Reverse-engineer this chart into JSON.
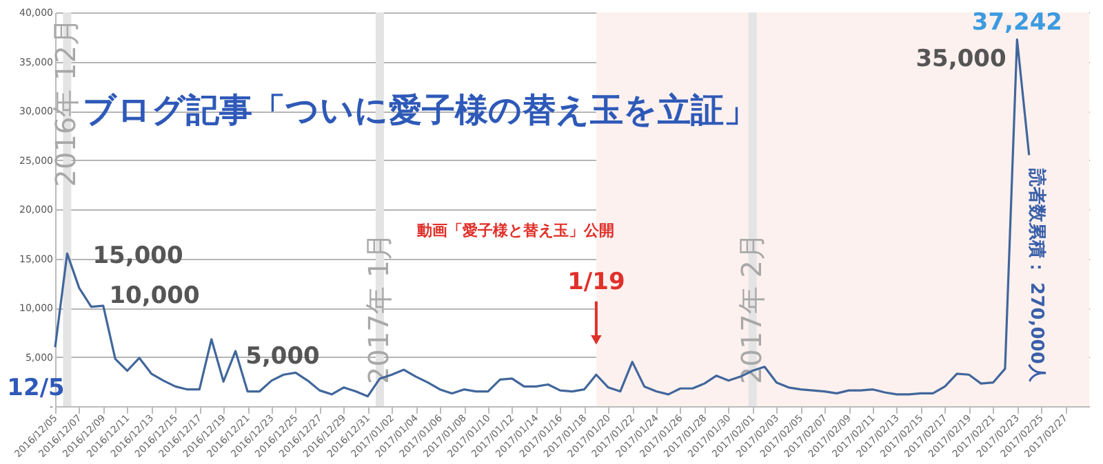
{
  "chart_data": {
    "type": "line",
    "title": "ブログ記事「ついに愛子様の替え玉を立証」",
    "x": [
      "2016-12-05",
      "2016-12-06",
      "2016-12-07",
      "2016-12-08",
      "2016-12-09",
      "2016-12-10",
      "2016-12-11",
      "2016-12-12",
      "2016-12-13",
      "2016-12-14",
      "2016-12-15",
      "2016-12-16",
      "2016-12-17",
      "2016-12-18",
      "2016-12-19",
      "2016-12-20",
      "2016-12-21",
      "2016-12-22",
      "2016-12-23",
      "2016-12-24",
      "2016-12-25",
      "2016-12-26",
      "2016-12-27",
      "2016-12-28",
      "2016-12-29",
      "2016-12-30",
      "2016-12-31",
      "2017-01-01",
      "2017-01-02",
      "2017-01-03",
      "2017-01-04",
      "2017-01-05",
      "2017-01-06",
      "2017-01-07",
      "2017-01-08",
      "2017-01-09",
      "2017-01-10",
      "2017-01-11",
      "2017-01-12",
      "2017-01-13",
      "2017-01-14",
      "2017-01-15",
      "2017-01-16",
      "2017-01-17",
      "2017-01-18",
      "2017-01-19",
      "2017-01-20",
      "2017-01-21",
      "2017-01-22",
      "2017-01-23",
      "2017-01-24",
      "2017-01-25",
      "2017-01-26",
      "2017-01-27",
      "2017-01-28",
      "2017-01-29",
      "2017-01-30",
      "2017-01-31",
      "2017-02-01",
      "2017-02-02",
      "2017-02-03",
      "2017-02-04",
      "2017-02-05",
      "2017-02-06",
      "2017-02-07",
      "2017-02-08",
      "2017-02-09",
      "2017-02-10",
      "2017-02-11",
      "2017-02-12",
      "2017-02-13",
      "2017-02-14",
      "2017-02-15",
      "2017-02-16",
      "2017-02-17",
      "2017-02-18",
      "2017-02-19",
      "2017-02-20",
      "2017-02-21",
      "2017-02-22",
      "2017-02-23",
      "2017-02-24"
    ],
    "value_labels": [
      null,
      null,
      null,
      null,
      null,
      null,
      null,
      null,
      null,
      null,
      null,
      null,
      null,
      null,
      null,
      null,
      null,
      null,
      null,
      null,
      null,
      null,
      null,
      null,
      null,
      null,
      null,
      null,
      null,
      null,
      null,
      null,
      null,
      null,
      null,
      null,
      null,
      null,
      null,
      null,
      null,
      null,
      null,
      null,
      null,
      null,
      null,
      null,
      null,
      null,
      null,
      null,
      null,
      null,
      null,
      null,
      null,
      null,
      null,
      null,
      null,
      null,
      null,
      null,
      null,
      null,
      null,
      null,
      null,
      null,
      null,
      null,
      null,
      null,
      null,
      null,
      null,
      null,
      null,
      null,
      "37,242",
      null
    ],
    "series": [
      {
        "color": "#41669b",
        "values": [
          6000,
          15500,
          12000,
          10100,
          10200,
          4800,
          3600,
          4900,
          3300,
          2600,
          2000,
          1700,
          1700,
          6800,
          2500,
          5600,
          1500,
          1500,
          2600,
          3200,
          3400,
          2600,
          1600,
          1200,
          1900,
          1500,
          1000,
          2800,
          3200,
          3700,
          3000,
          2400,
          1700,
          1300,
          1700,
          1500,
          1500,
          2700,
          2800,
          2000,
          2000,
          2200,
          1600,
          1500,
          1700,
          3200,
          1900,
          1500,
          4500,
          2000,
          1500,
          1200,
          1800,
          1800,
          2300,
          3100,
          2600,
          3000,
          3600,
          4000,
          2400,
          1900,
          1700,
          1600,
          1500,
          1300,
          1600,
          1600,
          1700,
          1400,
          1200,
          1200,
          1300,
          1300,
          2000,
          3300,
          3200,
          2300,
          2400,
          3800,
          37242,
          25500
        ]
      }
    ],
    "xlim": [
      "2016-12-05",
      "2017-03-01"
    ],
    "xticks": [
      {
        "value": "2016-12-05",
        "label": "2016/12/05"
      },
      {
        "value": "2016-12-07",
        "label": "2016/12/07"
      },
      {
        "value": "2016-12-09",
        "label": "2016/12/09"
      },
      {
        "value": "2016-12-11",
        "label": "2016/12/11"
      },
      {
        "value": "2016-12-13",
        "label": "2016/12/13"
      },
      {
        "value": "2016-12-15",
        "label": "2016/12/15"
      },
      {
        "value": "2016-12-17",
        "label": "2016/12/17"
      },
      {
        "value": "2016-12-19",
        "label": "2016/12/19"
      },
      {
        "value": "2016-12-21",
        "label": "2016/12/21"
      },
      {
        "value": "2016-12-23",
        "label": "2016/12/23"
      },
      {
        "value": "2016-12-25",
        "label": "2016/12/25"
      },
      {
        "value": "2016-12-27",
        "label": "2016/12/27"
      },
      {
        "value": "2016-12-29",
        "label": "2016/12/29"
      },
      {
        "value": "2016-12-31",
        "label": "2016/12/31"
      },
      {
        "value": "2017-01-02",
        "label": "2017/01/02"
      },
      {
        "value": "2017-01-04",
        "label": "2017/01/04"
      },
      {
        "value": "2017-01-06",
        "label": "2017/01/06"
      },
      {
        "value": "2017-01-08",
        "label": "2017/01/08"
      },
      {
        "value": "2017-01-10",
        "label": "2017/01/10"
      },
      {
        "value": "2017-01-12",
        "label": "2017/01/12"
      },
      {
        "value": "2017-01-14",
        "label": "2017/01/14"
      },
      {
        "value": "2017-01-16",
        "label": "2017/01/16"
      },
      {
        "value": "2017-01-18",
        "label": "2017/01/18"
      },
      {
        "value": "2017-01-20",
        "label": "2017/01/20"
      },
      {
        "value": "2017-01-22",
        "label": "2017/01/22"
      },
      {
        "value": "2017-01-24",
        "label": "2017/01/24"
      },
      {
        "value": "2017-01-26",
        "label": "2017/01/26"
      },
      {
        "value": "2017-01-28",
        "label": "2017/01/28"
      },
      {
        "value": "2017-01-30",
        "label": "2017/01/30"
      },
      {
        "value": "2017-02-01",
        "label": "2017/02/01"
      },
      {
        "value": "2017-02-03",
        "label": "2017/02/03"
      },
      {
        "value": "2017-02-05",
        "label": "2017/02/05"
      },
      {
        "value": "2017-02-07",
        "label": "2017/02/07"
      },
      {
        "value": "2017-02-09",
        "label": "2017/02/09"
      },
      {
        "value": "2017-02-11",
        "label": "2017/02/11"
      },
      {
        "value": "2017-02-13",
        "label": "2017/02/13"
      },
      {
        "value": "2017-02-15",
        "label": "2017/02/15"
      },
      {
        "value": "2017-02-17",
        "label": "2017/02/17"
      },
      {
        "value": "2017-02-19",
        "label": "2017/02/19"
      },
      {
        "value": "2017-02-21",
        "label": "2017/02/21"
      },
      {
        "value": "2017-02-23",
        "label": "2017/02/23"
      },
      {
        "value": "2017-02-25",
        "label": "2017/02/25"
      },
      {
        "value": "2017-02-27",
        "label": "2017/02/27"
      }
    ],
    "ylim": [
      0,
      40000
    ],
    "yticks": [
      {
        "value": 0,
        "label": "-"
      },
      {
        "value": 5000,
        "label": "5,000"
      },
      {
        "value": 10000,
        "label": "10,000"
      },
      {
        "value": 15000,
        "label": "15,000"
      },
      {
        "value": 20000,
        "label": "20,000"
      },
      {
        "value": 25000,
        "label": "25,000"
      },
      {
        "value": 30000,
        "label": "30,000"
      },
      {
        "value": 35000,
        "label": "35,000"
      },
      {
        "value": 40000,
        "label": "40,000"
      }
    ],
    "grid": "y",
    "bands": [
      {
        "axis": "x",
        "from": "2017-01-19",
        "to": "2017-03-01",
        "color": "#fdf1ef"
      }
    ],
    "ref_lines": [
      {
        "axis": "x",
        "value": "2016-12-06",
        "label": "2016年 12月",
        "color": "#e4e4e4"
      },
      {
        "axis": "x",
        "value": "2017-01-01",
        "label": "2017年 1月",
        "color": "#e4e4e4"
      },
      {
        "axis": "x",
        "value": "2017-02-01",
        "label": "2017年 2月",
        "color": "#e4e4e4"
      }
    ],
    "annotations": [
      "15,000",
      "10,000",
      "5,000",
      "12/5",
      "35,000",
      "動画「愛子様と替え玉」公開",
      "読者数累積： 270,000人",
      {
        "text": "1/19",
        "x": "2017-01-19",
        "y": 12600
      }
    ]
  }
}
